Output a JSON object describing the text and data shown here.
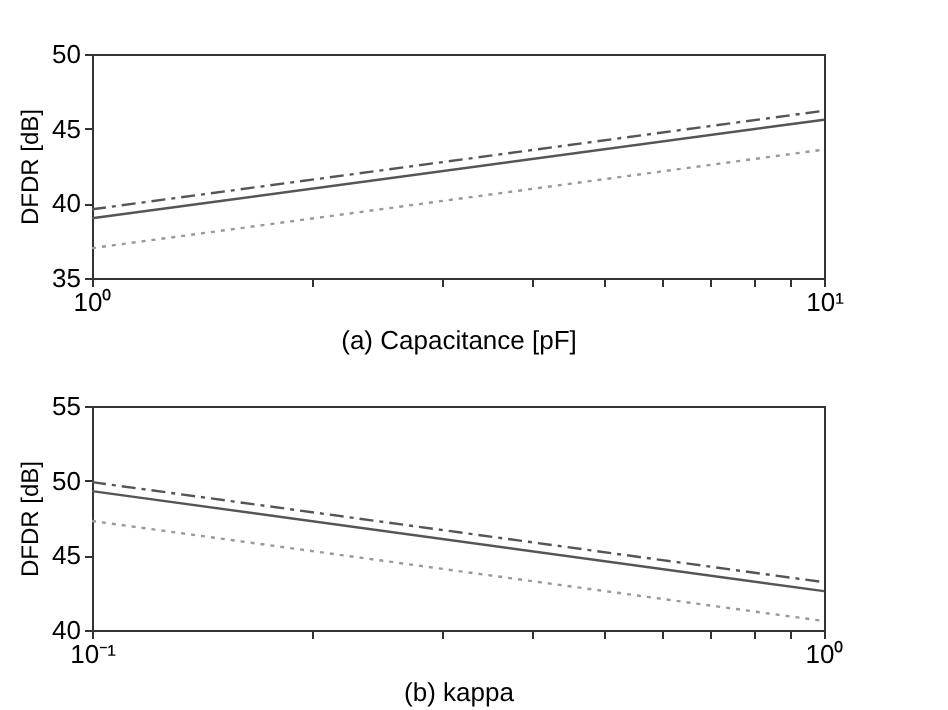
{
  "chart_data": [
    {
      "type": "line",
      "xlabel": "(a) Capacitance [pF]",
      "ylabel": "DFDR [dB]",
      "log": "x",
      "grid": false,
      "marker": "none",
      "xlim": [
        1,
        10
      ],
      "xticks": [
        {
          "value": 1,
          "label": "10⁰"
        },
        {
          "value": 2,
          "label": null
        },
        {
          "value": 3,
          "label": null
        },
        {
          "value": 4,
          "label": null
        },
        {
          "value": 5,
          "label": null
        },
        {
          "value": 6,
          "label": null
        },
        {
          "value": 7,
          "label": null
        },
        {
          "value": 8,
          "label": null
        },
        {
          "value": 9,
          "label": null
        },
        {
          "value": 10,
          "label": "10¹"
        }
      ],
      "ylim": [
        35,
        50
      ],
      "yticks": [
        35,
        40,
        45,
        50
      ],
      "series": [
        {
          "color": "#555555",
          "line_style": "solid",
          "x": [
            1,
            10
          ],
          "values": [
            39.0,
            45.6
          ]
        },
        {
          "color": "#555555",
          "line_style": "dashed",
          "x": [
            1,
            10
          ],
          "values": [
            39.6,
            46.2
          ]
        },
        {
          "color": "#999999",
          "line_style": "dotted",
          "x": [
            1,
            10
          ],
          "values": [
            37.0,
            43.6
          ]
        }
      ]
    },
    {
      "type": "line",
      "xlabel": "(b) kappa",
      "ylabel": "DFDR [dB]",
      "log": "x",
      "grid": false,
      "marker": "none",
      "xlim": [
        0.1,
        1
      ],
      "xticks": [
        {
          "value": 0.1,
          "label": "10⁻¹"
        },
        {
          "value": 0.2,
          "label": null
        },
        {
          "value": 0.3,
          "label": null
        },
        {
          "value": 0.4,
          "label": null
        },
        {
          "value": 0.5,
          "label": null
        },
        {
          "value": 0.6,
          "label": null
        },
        {
          "value": 0.7,
          "label": null
        },
        {
          "value": 0.8,
          "label": null
        },
        {
          "value": 0.9,
          "label": null
        },
        {
          "value": 1,
          "label": "10⁰"
        }
      ],
      "ylim": [
        40,
        55
      ],
      "yticks": [
        40,
        45,
        50,
        55
      ],
      "series": [
        {
          "color": "#555555",
          "line_style": "solid",
          "x": [
            0.1,
            1
          ],
          "values": [
            49.3,
            42.6
          ]
        },
        {
          "color": "#555555",
          "line_style": "dashed",
          "x": [
            0.1,
            1
          ],
          "values": [
            49.9,
            43.2
          ]
        },
        {
          "color": "#999999",
          "line_style": "dotted",
          "x": [
            0.1,
            1
          ],
          "values": [
            47.3,
            40.6
          ]
        }
      ]
    }
  ]
}
